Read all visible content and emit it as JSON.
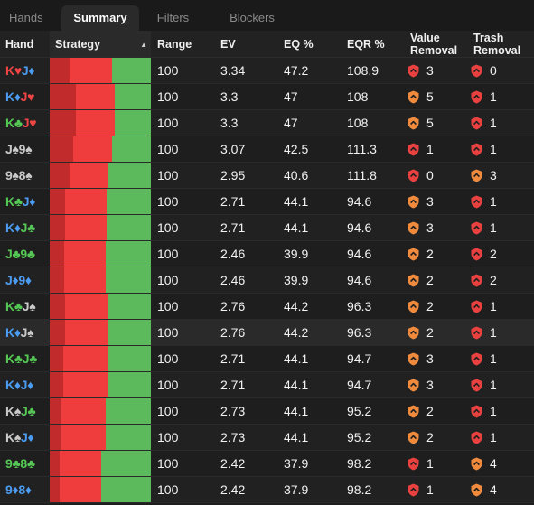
{
  "tabs": [
    {
      "label": "Hands",
      "active": false
    },
    {
      "label": "Summary",
      "active": true
    },
    {
      "label": "Filters",
      "active": false
    },
    {
      "label": "Blockers",
      "active": false
    }
  ],
  "columns": {
    "hand": "Hand",
    "strategy": "Strategy",
    "sort_indicator": "▲",
    "range": "Range",
    "ev": "EV",
    "eq": "EQ %",
    "eqr": "EQR %",
    "value_removal_line1": "Value",
    "value_removal_line2": "Removal",
    "trash_removal_line1": "Trash",
    "trash_removal_line2": "Removal"
  },
  "colors": {
    "strategy_dark_red": "#c22b2b",
    "strategy_red": "#ef3d3d",
    "strategy_green": "#5cba5c",
    "shield_red": "#e8413f",
    "shield_orange": "#f08a3c",
    "suit_hearts": "#f04545",
    "suit_diamonds": "#4b9bf0",
    "suit_clubs": "#55c755",
    "suit_spades": "#c9c9c9"
  },
  "rows": [
    {
      "c1": "K",
      "s1": "h",
      "c2": "J",
      "s2": "d",
      "strategy": [
        0.2,
        0.42,
        0.38
      ],
      "range": "100",
      "ev": "3.34",
      "eq": "47.2",
      "eqr": "108.9",
      "value": "3",
      "value_color": "red",
      "trash": "0",
      "trash_color": "red"
    },
    {
      "c1": "K",
      "s1": "d",
      "c2": "J",
      "s2": "h",
      "strategy": [
        0.26,
        0.38,
        0.36
      ],
      "range": "100",
      "ev": "3.3",
      "eq": "47",
      "eqr": "108",
      "value": "5",
      "value_color": "orange",
      "trash": "1",
      "trash_color": "red"
    },
    {
      "c1": "K",
      "s1": "c",
      "c2": "J",
      "s2": "h",
      "strategy": [
        0.26,
        0.38,
        0.36
      ],
      "range": "100",
      "ev": "3.3",
      "eq": "47",
      "eqr": "108",
      "value": "5",
      "value_color": "orange",
      "trash": "1",
      "trash_color": "red"
    },
    {
      "c1": "J",
      "s1": "s",
      "c2": "9",
      "s2": "s",
      "strategy": [
        0.23,
        0.38,
        0.39
      ],
      "range": "100",
      "ev": "3.07",
      "eq": "42.5",
      "eqr": "111.3",
      "value": "1",
      "value_color": "red",
      "trash": "1",
      "trash_color": "red"
    },
    {
      "c1": "9",
      "s1": "s",
      "c2": "8",
      "s2": "s",
      "strategy": [
        0.2,
        0.38,
        0.42
      ],
      "range": "100",
      "ev": "2.95",
      "eq": "40.6",
      "eqr": "111.8",
      "value": "0",
      "value_color": "red",
      "trash": "3",
      "trash_color": "orange"
    },
    {
      "c1": "K",
      "s1": "c",
      "c2": "J",
      "s2": "d",
      "strategy": [
        0.15,
        0.41,
        0.44
      ],
      "range": "100",
      "ev": "2.71",
      "eq": "44.1",
      "eqr": "94.6",
      "value": "3",
      "value_color": "orange",
      "trash": "1",
      "trash_color": "red"
    },
    {
      "c1": "K",
      "s1": "d",
      "c2": "J",
      "s2": "c",
      "strategy": [
        0.15,
        0.41,
        0.44
      ],
      "range": "100",
      "ev": "2.71",
      "eq": "44.1",
      "eqr": "94.6",
      "value": "3",
      "value_color": "orange",
      "trash": "1",
      "trash_color": "red"
    },
    {
      "c1": "J",
      "s1": "c",
      "c2": "9",
      "s2": "c",
      "strategy": [
        0.14,
        0.41,
        0.45
      ],
      "range": "100",
      "ev": "2.46",
      "eq": "39.9",
      "eqr": "94.6",
      "value": "2",
      "value_color": "orange",
      "trash": "2",
      "trash_color": "red"
    },
    {
      "c1": "J",
      "s1": "d",
      "c2": "9",
      "s2": "d",
      "strategy": [
        0.14,
        0.41,
        0.45
      ],
      "range": "100",
      "ev": "2.46",
      "eq": "39.9",
      "eqr": "94.6",
      "value": "2",
      "value_color": "orange",
      "trash": "2",
      "trash_color": "red"
    },
    {
      "c1": "K",
      "s1": "c",
      "c2": "J",
      "s2": "s",
      "strategy": [
        0.15,
        0.42,
        0.43
      ],
      "range": "100",
      "ev": "2.76",
      "eq": "44.2",
      "eqr": "96.3",
      "value": "2",
      "value_color": "orange",
      "trash": "1",
      "trash_color": "red"
    },
    {
      "c1": "K",
      "s1": "d",
      "c2": "J",
      "s2": "s",
      "strategy": [
        0.15,
        0.42,
        0.43
      ],
      "range": "100",
      "ev": "2.76",
      "eq": "44.2",
      "eqr": "96.3",
      "value": "2",
      "value_color": "orange",
      "trash": "1",
      "trash_color": "red"
    },
    {
      "c1": "K",
      "s1": "c",
      "c2": "J",
      "s2": "c",
      "strategy": [
        0.13,
        0.44,
        0.43
      ],
      "range": "100",
      "ev": "2.71",
      "eq": "44.1",
      "eqr": "94.7",
      "value": "3",
      "value_color": "orange",
      "trash": "1",
      "trash_color": "red"
    },
    {
      "c1": "K",
      "s1": "d",
      "c2": "J",
      "s2": "d",
      "strategy": [
        0.13,
        0.44,
        0.43
      ],
      "range": "100",
      "ev": "2.71",
      "eq": "44.1",
      "eqr": "94.7",
      "value": "3",
      "value_color": "orange",
      "trash": "1",
      "trash_color": "red"
    },
    {
      "c1": "K",
      "s1": "s",
      "c2": "J",
      "s2": "c",
      "strategy": [
        0.12,
        0.44,
        0.44
      ],
      "range": "100",
      "ev": "2.73",
      "eq": "44.1",
      "eqr": "95.2",
      "value": "2",
      "value_color": "orange",
      "trash": "1",
      "trash_color": "red"
    },
    {
      "c1": "K",
      "s1": "s",
      "c2": "J",
      "s2": "d",
      "strategy": [
        0.12,
        0.44,
        0.44
      ],
      "range": "100",
      "ev": "2.73",
      "eq": "44.1",
      "eqr": "95.2",
      "value": "2",
      "value_color": "orange",
      "trash": "1",
      "trash_color": "red"
    },
    {
      "c1": "9",
      "s1": "c",
      "c2": "8",
      "s2": "c",
      "strategy": [
        0.1,
        0.41,
        0.49
      ],
      "range": "100",
      "ev": "2.42",
      "eq": "37.9",
      "eqr": "98.2",
      "value": "1",
      "value_color": "red",
      "trash": "4",
      "trash_color": "orange"
    },
    {
      "c1": "9",
      "s1": "d",
      "c2": "8",
      "s2": "d",
      "strategy": [
        0.1,
        0.41,
        0.49
      ],
      "range": "100",
      "ev": "2.42",
      "eq": "37.9",
      "eqr": "98.2",
      "value": "1",
      "value_color": "red",
      "trash": "4",
      "trash_color": "orange"
    }
  ]
}
